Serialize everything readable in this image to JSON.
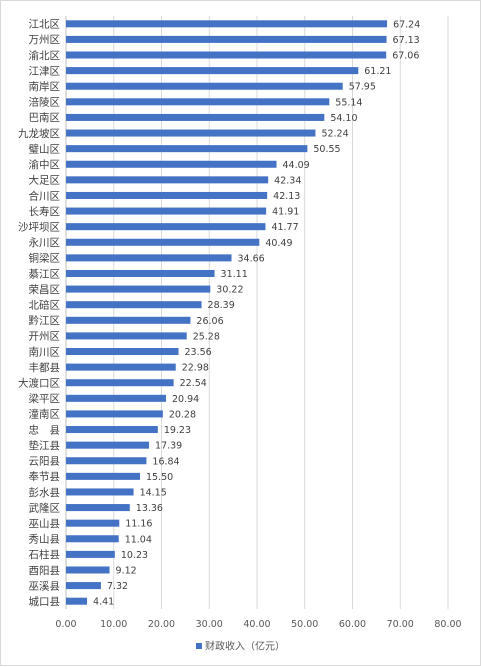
{
  "chart_data": {
    "type": "bar",
    "orientation": "horizontal",
    "categories": [
      "江北区",
      "万州区",
      "渝北区",
      "江津区",
      "南岸区",
      "涪陵区",
      "巴南区",
      "九龙坡区",
      "璧山区",
      "渝中区",
      "大足区",
      "合川区",
      "长寿区",
      "沙坪坝区",
      "永川区",
      "铜梁区",
      "綦江区",
      "荣昌区",
      "北碚区",
      "黔江区",
      "开州区",
      "南川区",
      "丰都县",
      "大渡口区",
      "梁平区",
      "潼南区",
      "忠　县",
      "垫江县",
      "云阳县",
      "奉节县",
      "彭水县",
      "武隆区",
      "巫山县",
      "秀山县",
      "石柱县",
      "酉阳县",
      "巫溪县",
      "城口县"
    ],
    "series": [
      {
        "name": "财政收入（亿元）",
        "color": "#4472c4",
        "values": [
          67.24,
          67.13,
          67.06,
          61.21,
          57.95,
          55.14,
          54.1,
          52.24,
          50.55,
          44.09,
          42.34,
          42.13,
          41.91,
          41.77,
          40.49,
          34.66,
          31.11,
          30.22,
          28.39,
          26.06,
          25.28,
          23.56,
          22.98,
          22.54,
          20.94,
          20.28,
          19.23,
          17.39,
          16.84,
          15.5,
          14.15,
          13.36,
          11.16,
          11.04,
          10.23,
          9.12,
          7.32,
          4.41
        ],
        "value_labels": [
          "67.24",
          "67.13",
          "67.06",
          "61.21",
          "57.95",
          "55.14",
          "54.10",
          "52.24",
          "50.55",
          "44.09",
          "42.34",
          "42.13",
          "41.91",
          "41.77",
          "40.49",
          "34.66",
          "31.11",
          "30.22",
          "28.39",
          "26.06",
          "25.28",
          "23.56",
          "22.98",
          "22.54",
          "20.94",
          "20.28",
          "19.23",
          "17.39",
          "16.84",
          "15.50",
          "14.15",
          "13.36",
          "11.16",
          "11.04",
          "10.23",
          "9.12",
          "7.32",
          "4.41"
        ]
      }
    ],
    "xlim": [
      0,
      80
    ],
    "x_ticks": [
      "0.00",
      "10.00",
      "20.00",
      "30.00",
      "40.00",
      "50.00",
      "60.00",
      "70.00",
      "80.00"
    ],
    "grid": true,
    "legend": {
      "position": "bottom",
      "label": "财政收入（亿元）"
    }
  }
}
